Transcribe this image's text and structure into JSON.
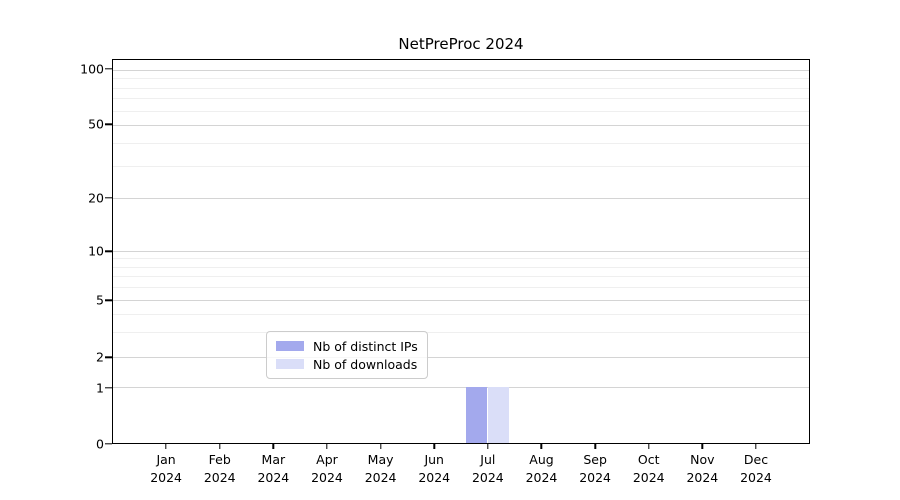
{
  "chart_data": {
    "type": "bar",
    "title": "NetPreProc 2024",
    "categories": [
      "Jan 2024",
      "Feb 2024",
      "Mar 2024",
      "Apr 2024",
      "May 2024",
      "Jun 2024",
      "Jul 2024",
      "Aug 2024",
      "Sep 2024",
      "Oct 2024",
      "Nov 2024",
      "Dec 2024"
    ],
    "series": [
      {
        "name": "Nb of distinct IPs",
        "color": "#a3a9ed",
        "values": [
          0,
          0,
          0,
          0,
          0,
          0,
          1,
          0,
          0,
          0,
          0,
          0
        ]
      },
      {
        "name": "Nb of downloads",
        "color": "#dadef8",
        "values": [
          0,
          0,
          0,
          0,
          0,
          0,
          1,
          0,
          0,
          0,
          0,
          0
        ]
      }
    ],
    "xlabel": "",
    "ylabel": "",
    "yscale": "symlog",
    "ylim": [
      0,
      100
    ],
    "grid": true,
    "legend_position": "lower center",
    "yaxis": {
      "major": [
        {
          "v": "100",
          "num": 100,
          "pct": 2.6
        },
        {
          "v": "50",
          "num": 50,
          "pct": 17.0
        },
        {
          "v": "20",
          "num": 20,
          "pct": 36.0
        },
        {
          "v": "10",
          "num": 10,
          "pct": 49.9
        },
        {
          "v": "5",
          "num": 5,
          "pct": 62.7
        },
        {
          "v": "2",
          "num": 2,
          "pct": 77.5
        },
        {
          "v": "1",
          "num": 1,
          "pct": 85.4
        },
        {
          "v": "0",
          "num": 0,
          "pct": 100.0
        }
      ],
      "minor_pct": [
        4.7,
        7.3,
        9.9,
        13.3,
        21.7,
        27.7,
        51.7,
        54.0,
        56.4,
        59.3,
        66.3,
        71.0
      ]
    },
    "xaxis": {
      "start_pct": 7.75,
      "step_pct": 7.683,
      "bar_width_pct": 3.0,
      "bar_offset_pct": 1.58
    }
  }
}
